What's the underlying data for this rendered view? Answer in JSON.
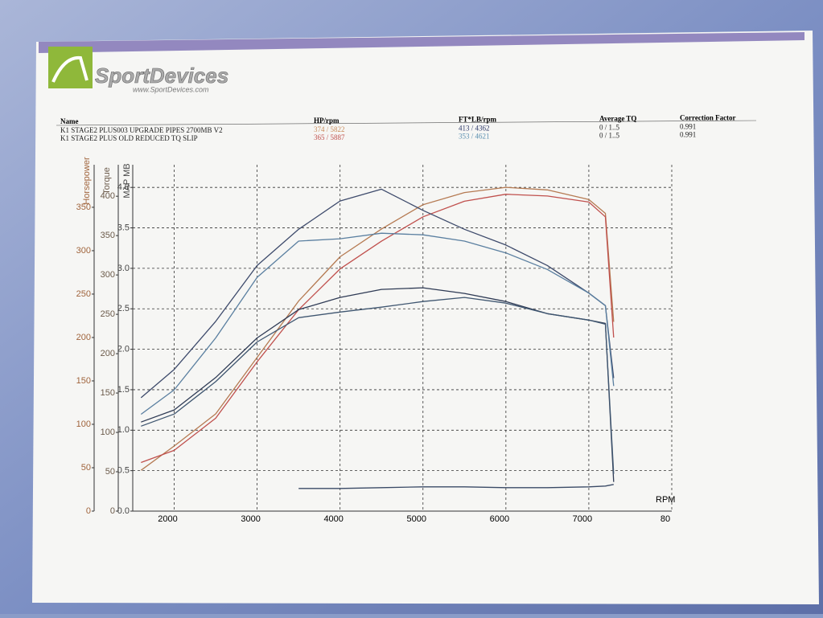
{
  "header": {
    "logo": "SportDevices",
    "url": "www.SportDevices.com"
  },
  "table": {
    "columns": [
      "Name",
      "HP/rpm",
      "FT*LB/rpm",
      "Average TQ",
      "Correction Factor"
    ],
    "rows": [
      [
        "K1 STAGE2 PLUS003 UPGRADE PIPES 2700MB V2",
        "374 / 5822",
        "413 / 4362",
        "0 / 1..5",
        "0.991"
      ],
      [
        "K1 STAGE2 PLUS OLD REDUCED TQ SLIP",
        "365 / 5887",
        "353 / 4621",
        "0 / 1..5",
        "0.991"
      ]
    ]
  },
  "chart_data": {
    "type": "line",
    "x_label": "RPM",
    "xlim": [
      1500,
      8000
    ],
    "xticks": [
      2000,
      3000,
      4000,
      5000,
      6000,
      7000,
      {
        "value": 8000,
        "label": "80"
      }
    ],
    "grid": true,
    "x": [
      1600,
      2000,
      2500,
      3000,
      3500,
      4000,
      4500,
      5000,
      5500,
      6000,
      6500,
      7000,
      7200,
      7300
    ],
    "y_axes": [
      {
        "label": "Horsepower",
        "lim": [
          0,
          399
        ],
        "ticks": [
          0,
          50,
          100,
          150,
          200,
          250,
          300,
          350
        ],
        "color": "#a0643c"
      },
      {
        "label": "Torque",
        "lim": [
          0,
          440
        ],
        "ticks": [
          0,
          50,
          100,
          150,
          200,
          250,
          300,
          350,
          400
        ],
        "color": "#6b5a4a"
      },
      {
        "label": "MAP MB",
        "lim": [
          0,
          4.28
        ],
        "ticks": [
          {
            "value": 0,
            "label": "0.0"
          },
          0.5,
          {
            "value": 1,
            "label": "1.0"
          },
          1.5,
          {
            "value": 2,
            "label": "2.0"
          },
          2.5,
          {
            "value": 3,
            "label": "3.0"
          },
          3.5,
          {
            "value": 4,
            "label": "4.0"
          }
        ],
        "color": "#444444"
      }
    ],
    "series": [
      {
        "axis": 0,
        "color": "#b57a52",
        "values": [
          47,
          75,
          112,
          177,
          242,
          293,
          325,
          353,
          367,
          373,
          370,
          359,
          343,
          218
        ]
      },
      {
        "axis": 0,
        "color": "#c0504d",
        "values": [
          56,
          70,
          107,
          172,
          232,
          279,
          311,
          339,
          357,
          365,
          363,
          356,
          339,
          200
        ]
      },
      {
        "axis": 1,
        "color": "#3d4a6b",
        "values": [
          144,
          180,
          241,
          312,
          358,
          394,
          409,
          382,
          358,
          338,
          312,
          277,
          261,
          169
        ]
      },
      {
        "axis": 1,
        "color": "#5a7fa0",
        "values": [
          123,
          154,
          220,
          297,
          343,
          346,
          353,
          351,
          343,
          328,
          307,
          277,
          261,
          159
        ]
      },
      {
        "axis": 2,
        "color": "#2f3b55",
        "values": [
          1.1,
          1.25,
          1.65,
          2.14,
          2.49,
          2.64,
          2.74,
          2.76,
          2.69,
          2.59,
          2.44,
          2.36,
          2.32,
          0.36
        ]
      },
      {
        "axis": 2,
        "color": "#3f5670",
        "values": [
          1.05,
          1.2,
          1.6,
          2.09,
          2.39,
          2.46,
          2.52,
          2.59,
          2.64,
          2.57,
          2.44,
          2.36,
          2.31,
          0.46
        ]
      },
      {
        "axis": 2,
        "color": "#3a4a66",
        "values": [
          null,
          null,
          null,
          null,
          0.28,
          0.28,
          0.29,
          0.3,
          0.3,
          0.29,
          0.29,
          0.3,
          0.31,
          0.33
        ]
      }
    ]
  }
}
